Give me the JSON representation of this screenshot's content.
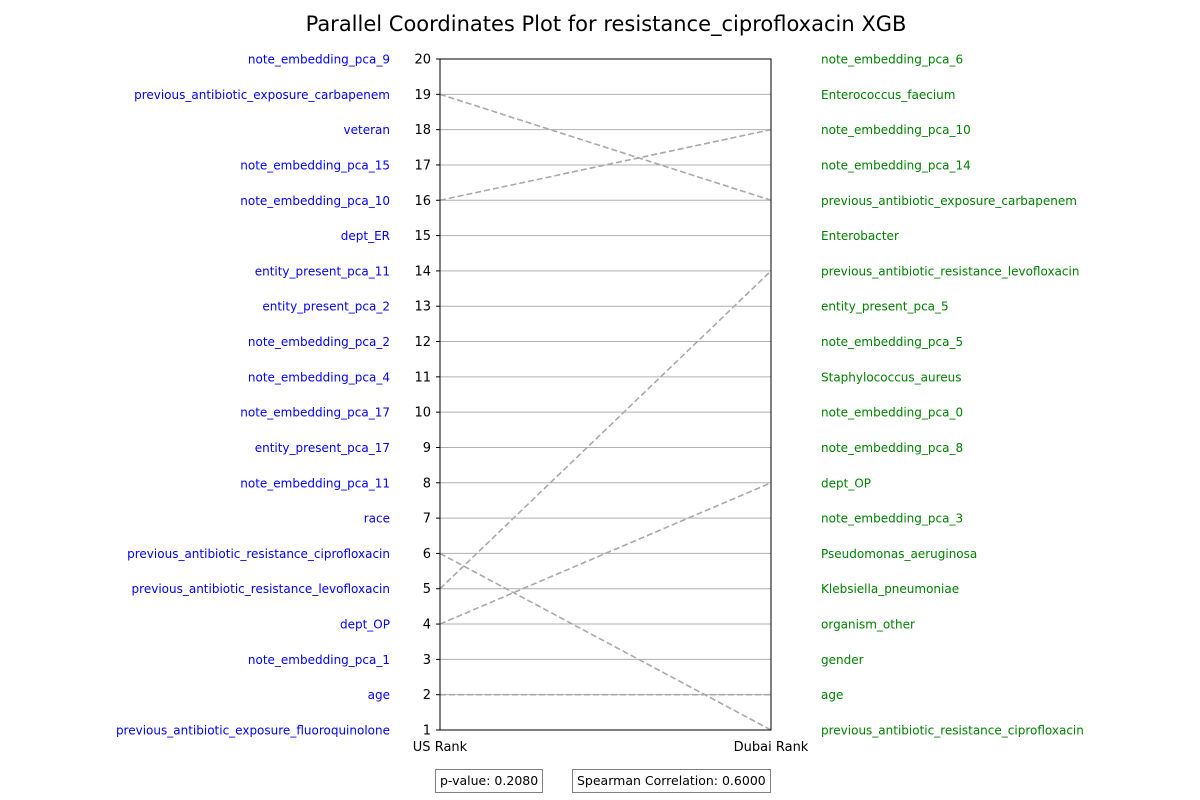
{
  "chart_data": {
    "type": "parallel_coordinates",
    "title": "Parallel Coordinates Plot for resistance_ciprofloxacin XGB",
    "axes": [
      "US Rank",
      "Dubai Rank"
    ],
    "ylim": [
      1,
      20
    ],
    "yticks": [
      1,
      2,
      3,
      4,
      5,
      6,
      7,
      8,
      9,
      10,
      11,
      12,
      13,
      14,
      15,
      16,
      17,
      18,
      19,
      20
    ],
    "grid": "horizontal",
    "left_labels": [
      "note_embedding_pca_9",
      "previous_antibiotic_exposure_carbapenem",
      "veteran",
      "note_embedding_pca_15",
      "note_embedding_pca_10",
      "dept_ER",
      "entity_present_pca_11",
      "entity_present_pca_2",
      "note_embedding_pca_2",
      "note_embedding_pca_4",
      "note_embedding_pca_17",
      "entity_present_pca_17",
      "note_embedding_pca_11",
      "race",
      "previous_antibiotic_resistance_ciprofloxacin",
      "previous_antibiotic_resistance_levofloxacin",
      "dept_OP",
      "note_embedding_pca_1",
      "age",
      "previous_antibiotic_exposure_fluoroquinolone"
    ],
    "right_labels": [
      "note_embedding_pca_6",
      "Enterococcus_faecium",
      "note_embedding_pca_10",
      "note_embedding_pca_14",
      "previous_antibiotic_exposure_carbapenem",
      "Enterobacter",
      "previous_antibiotic_resistance_levofloxacin",
      "entity_present_pca_5",
      "note_embedding_pca_5",
      "Staphylococcus_aureus",
      "note_embedding_pca_0",
      "note_embedding_pca_8",
      "dept_OP",
      "note_embedding_pca_3",
      "Pseudomonas_aeruginosa",
      "Klebsiella_pneumoniae",
      "organism_other",
      "gender",
      "age",
      "previous_antibiotic_resistance_ciprofloxacin"
    ],
    "lines": [
      {
        "us": 19,
        "dubai": 16
      },
      {
        "us": 16,
        "dubai": 18
      },
      {
        "us": 5,
        "dubai": 14
      },
      {
        "us": 4,
        "dubai": 8
      },
      {
        "us": 6,
        "dubai": 1
      },
      {
        "us": 2,
        "dubai": 2
      }
    ],
    "colors": {
      "left_labels": "#0000ff",
      "right_labels": "#008000",
      "lines": "#a9a9a9",
      "grid": "#b0b0b0"
    }
  },
  "stats": {
    "p_value": "p-value: 0.2080",
    "spearman": "Spearman Correlation: 0.6000"
  }
}
